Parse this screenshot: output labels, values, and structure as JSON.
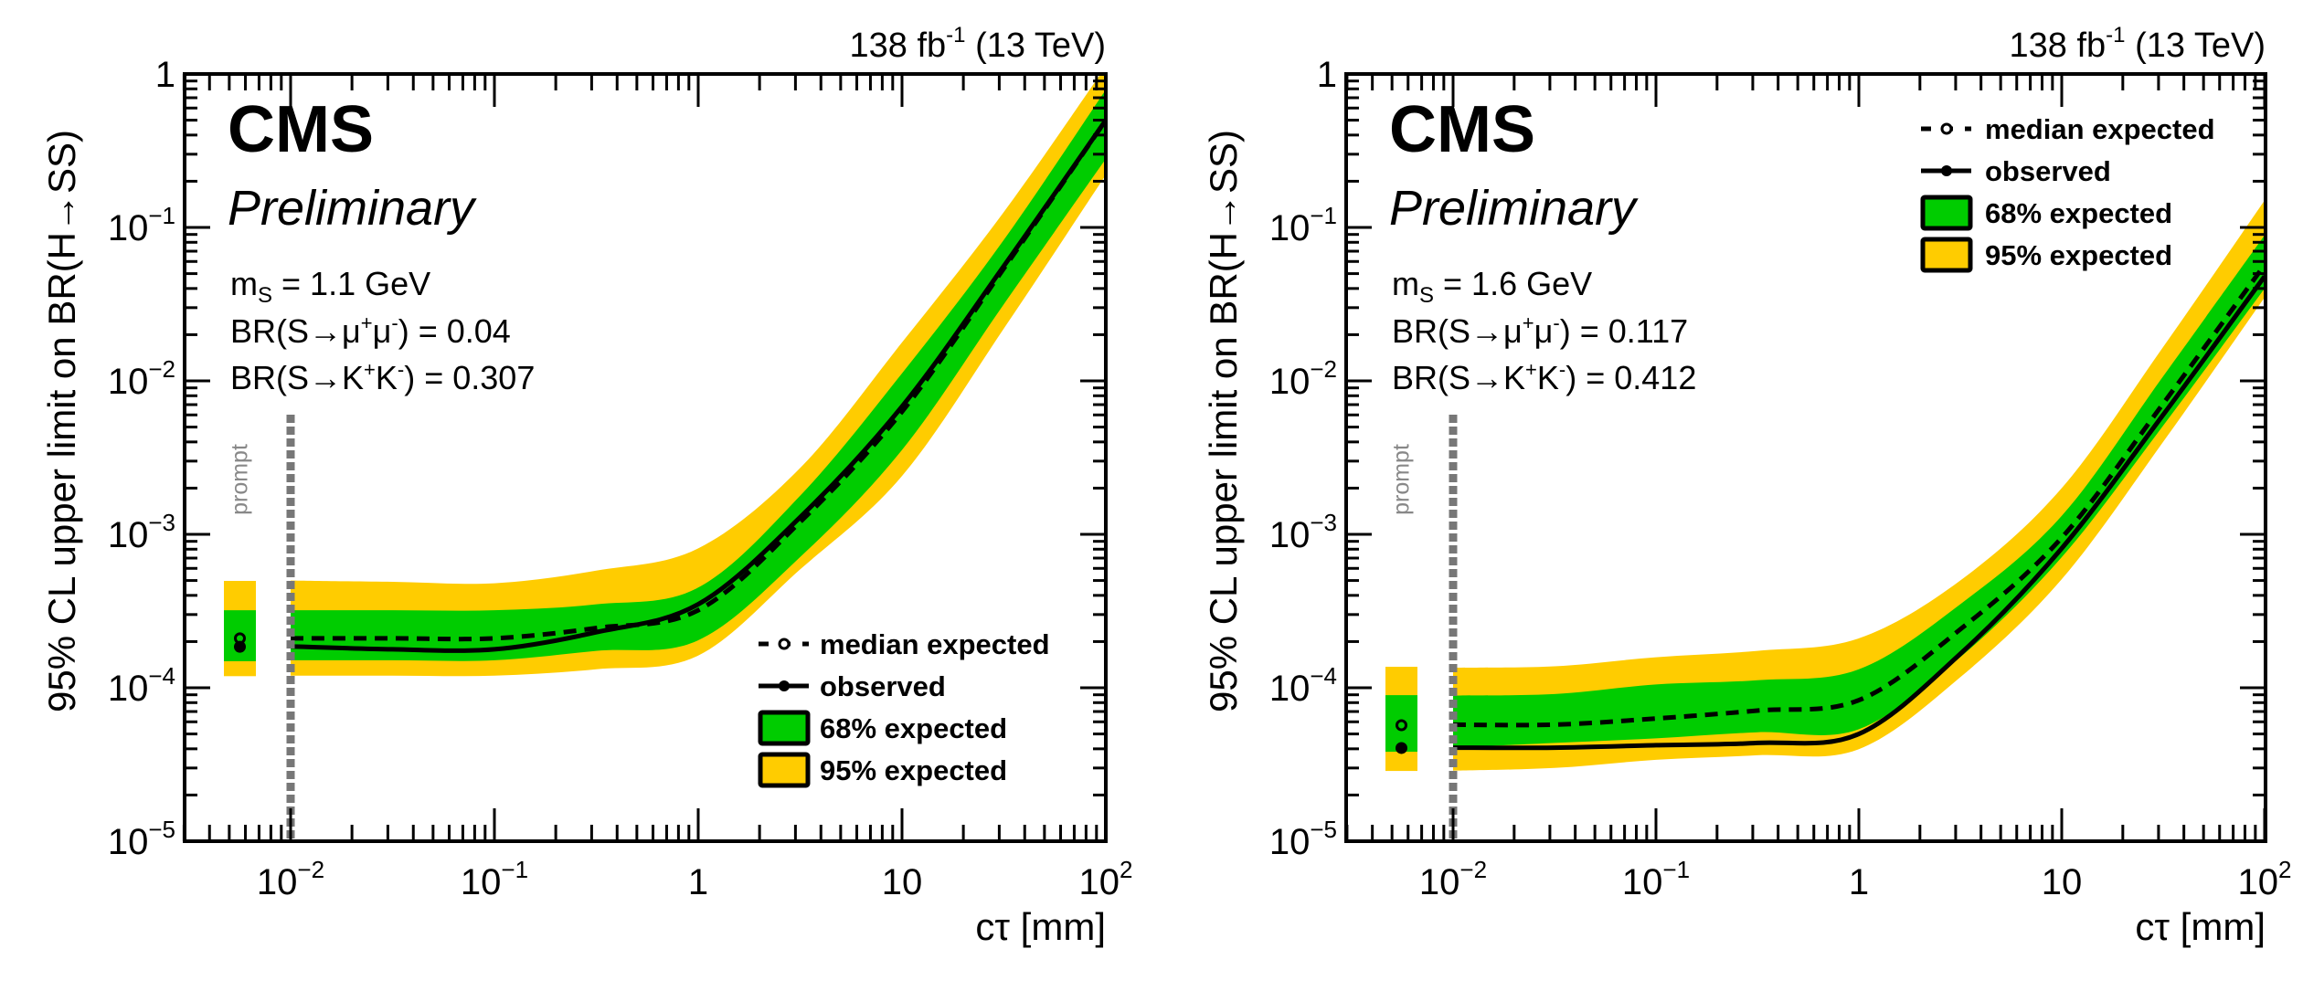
{
  "figure": {
    "lumi_label": "138 fb",
    "lumi_sup": "-1",
    "lumi_energy": " (13 TeV)",
    "experiment": "CMS",
    "status": "Preliminary",
    "prompt_label": "prompt"
  },
  "legend": {
    "median": "median expected",
    "observed": "observed",
    "band68": "68% expected",
    "band95": "95% expected"
  },
  "colors": {
    "band68": "#00CC00",
    "band95": "#FFCC00",
    "line": "#000000",
    "prompt_line": "#777777",
    "prompt_text": "#888888"
  },
  "chart_data": [
    {
      "type": "line",
      "title": "",
      "xlabel": "cτ [mm]",
      "ylabel": "95% CL upper limit on BR(H→SS)",
      "xscale": "log",
      "yscale": "log",
      "xlim": [
        0.003,
        100
      ],
      "ylim": [
        1e-05,
        1
      ],
      "x_ticks": [
        {
          "base": "10",
          "exp": "−2"
        },
        {
          "base": "10",
          "exp": "−1"
        },
        {
          "base": "1",
          "exp": ""
        },
        {
          "base": "10",
          "exp": ""
        },
        {
          "base": "10",
          "exp": "2"
        }
      ],
      "y_ticks": [
        {
          "base": "1",
          "exp": ""
        },
        {
          "base": "10",
          "exp": "−1"
        },
        {
          "base": "10",
          "exp": "−2"
        },
        {
          "base": "10",
          "exp": "−3"
        },
        {
          "base": "10",
          "exp": "−4"
        },
        {
          "base": "10",
          "exp": "−5"
        }
      ],
      "legend_position": "bottom-right",
      "annotations": {
        "mass": {
          "pre": "m",
          "sub": "S",
          "post": " = 1.1 GeV"
        },
        "br_mumu": {
          "pre": "BR(S→μ",
          "s1": "+",
          "mid": "μ",
          "s2": "-",
          "post": ") = 0.04"
        },
        "br_kk": {
          "pre": "BR(S→K",
          "s1": "+",
          "mid": "K",
          "s2": "-",
          "post": ") = 0.307"
        }
      },
      "prompt": {
        "median": 0.00021,
        "observed": 0.000185,
        "band68": [
          0.000149,
          0.00032
        ],
        "band95": [
          0.000119,
          0.000497
        ]
      },
      "x": [
        0.01,
        0.0316,
        0.1,
        0.316,
        1,
        3.16,
        10,
        31.6,
        100
      ],
      "series": [
        {
          "name": "95% expected upper",
          "values": [
            0.0005,
            0.00049,
            0.00048,
            0.00058,
            0.00081,
            0.0027,
            0.0178,
            0.126,
            1.12
          ]
        },
        {
          "name": "68% expected upper",
          "values": [
            0.00032,
            0.00032,
            0.00032,
            0.00035,
            0.00045,
            0.00178,
            0.0112,
            0.083,
            0.79
          ]
        },
        {
          "name": "median expected",
          "values": [
            0.00021,
            0.00021,
            0.00021,
            0.000245,
            0.00032,
            0.0012,
            0.0063,
            0.054,
            0.5
          ]
        },
        {
          "name": "observed",
          "values": [
            0.000186,
            0.000178,
            0.000178,
            0.00023,
            0.00035,
            0.00129,
            0.0068,
            0.056,
            0.5
          ]
        },
        {
          "name": "68% expected lower",
          "values": [
            0.000151,
            0.000151,
            0.000151,
            0.000174,
            0.000204,
            0.00071,
            0.00355,
            0.0316,
            0.28
          ]
        },
        {
          "name": "95% expected lower",
          "values": [
            0.00012,
            0.00012,
            0.00012,
            0.000132,
            0.000162,
            0.00059,
            0.0024,
            0.0219,
            0.22
          ]
        }
      ]
    },
    {
      "type": "line",
      "title": "",
      "xlabel": "cτ [mm]",
      "ylabel": "95% CL upper limit on BR(H→SS)",
      "xscale": "log",
      "yscale": "log",
      "xlim": [
        0.003,
        100
      ],
      "ylim": [
        1e-05,
        1
      ],
      "x_ticks": [
        {
          "base": "10",
          "exp": "−2"
        },
        {
          "base": "10",
          "exp": "−1"
        },
        {
          "base": "1",
          "exp": ""
        },
        {
          "base": "10",
          "exp": ""
        },
        {
          "base": "10",
          "exp": "2"
        }
      ],
      "y_ticks": [
        {
          "base": "1",
          "exp": ""
        },
        {
          "base": "10",
          "exp": "−1"
        },
        {
          "base": "10",
          "exp": "−2"
        },
        {
          "base": "10",
          "exp": "−3"
        },
        {
          "base": "10",
          "exp": "−4"
        },
        {
          "base": "10",
          "exp": "−5"
        }
      ],
      "legend_position": "top-right",
      "annotations": {
        "mass": {
          "pre": "m",
          "sub": "S",
          "post": " = 1.6 GeV"
        },
        "br_mumu": {
          "pre": "BR(S→μ",
          "s1": "+",
          "mid": "μ",
          "s2": "-",
          "post": ") = 0.117"
        },
        "br_kk": {
          "pre": "BR(S→K",
          "s1": "+",
          "mid": "K",
          "s2": "-",
          "post": ") = 0.412"
        }
      },
      "prompt": {
        "median": 5.7e-05,
        "observed": 4.05e-05,
        "band68": [
          3.83e-05,
          8.95e-05
        ],
        "band95": [
          2.87e-05,
          0.000137
        ]
      },
      "x": [
        0.01,
        0.0316,
        0.1,
        0.316,
        1,
        3.16,
        10,
        31.6,
        100
      ],
      "series": [
        {
          "name": "95% expected upper",
          "values": [
            0.000135,
            0.000138,
            0.000158,
            0.000174,
            0.00021,
            0.0005,
            0.002,
            0.0166,
            0.15
          ]
        },
        {
          "name": "68% expected upper",
          "values": [
            8.9e-05,
            9.1e-05,
            0.000105,
            0.000112,
            0.000132,
            0.00035,
            0.00132,
            0.0107,
            0.089
          ]
        },
        {
          "name": "median expected",
          "values": [
            5.75e-05,
            5.75e-05,
            6.3e-05,
            7.1e-05,
            8.3e-05,
            0.00024,
            0.00095,
            0.0071,
            0.057
          ]
        },
        {
          "name": "observed",
          "values": [
            4.07e-05,
            4.07e-05,
            4.22e-05,
            4.37e-05,
            5e-05,
            0.000166,
            0.00081,
            0.006,
            0.048
          ]
        },
        {
          "name": "68% expected lower",
          "values": [
            4.07e-05,
            4.37e-05,
            4.68e-05,
            5.13e-05,
            5.37e-05,
            0.000158,
            0.00071,
            0.0051,
            0.04
          ]
        },
        {
          "name": "95% expected lower",
          "values": [
            2.88e-05,
            3e-05,
            3.39e-05,
            3.63e-05,
            3.98e-05,
            0.000117,
            0.00051,
            0.004,
            0.035
          ]
        }
      ]
    }
  ]
}
